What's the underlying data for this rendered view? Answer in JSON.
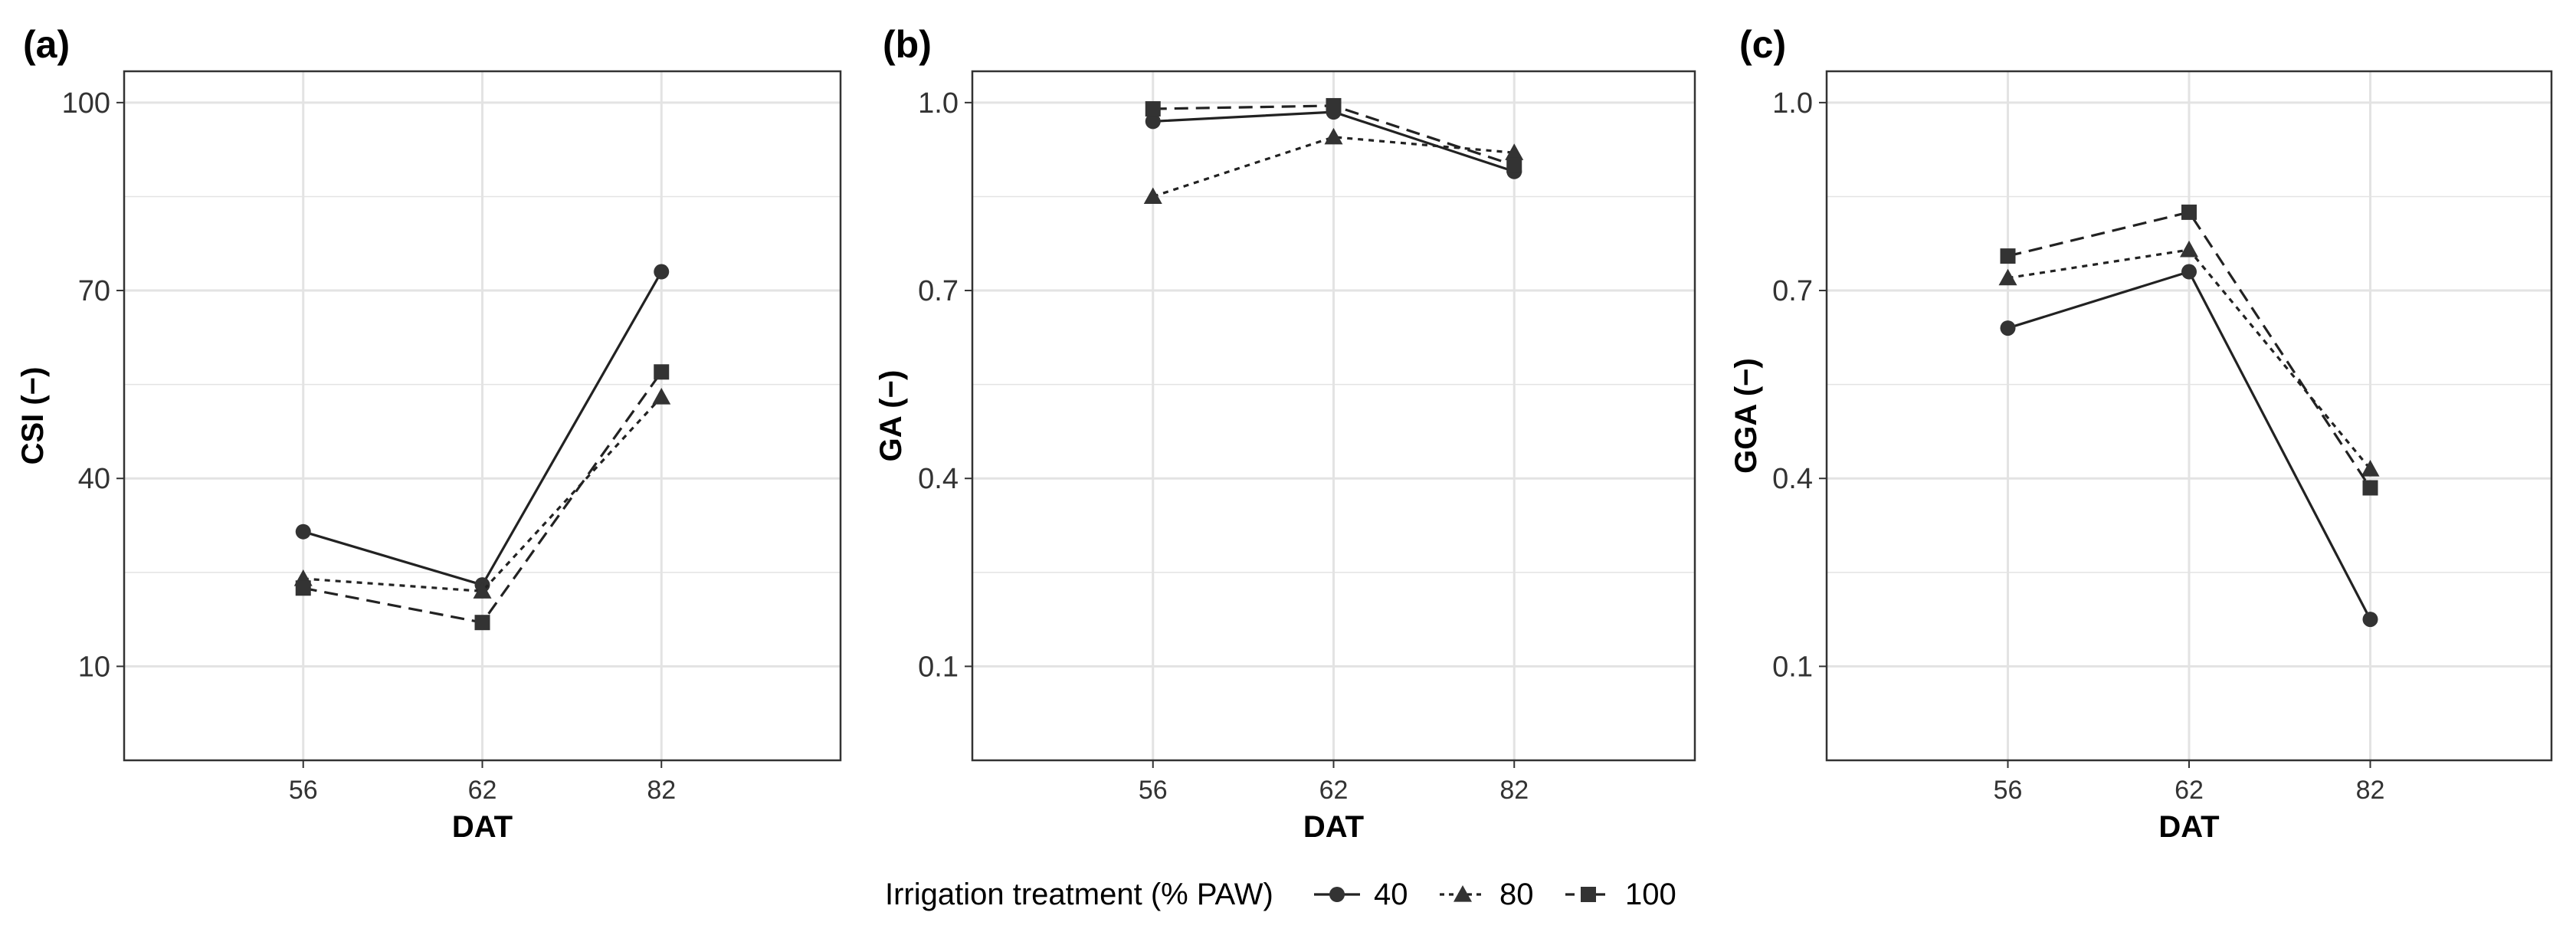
{
  "chart_data": [
    {
      "type": "line",
      "panel_label": "(a)",
      "xlabel": "DAT",
      "ylabel": "CSI (−)",
      "categories": [
        "56",
        "62",
        "82"
      ],
      "yticks": [
        "10",
        "40",
        "70",
        "100"
      ],
      "ylim": [
        -5,
        105
      ],
      "grid": true,
      "series": [
        {
          "name": "40",
          "values": [
            31.5,
            23,
            73
          ]
        },
        {
          "name": "80",
          "values": [
            24,
            22,
            53
          ]
        },
        {
          "name": "100",
          "values": [
            22.5,
            17,
            57
          ]
        }
      ]
    },
    {
      "type": "line",
      "panel_label": "(b)",
      "xlabel": "DAT",
      "ylabel": "GA (−)",
      "categories": [
        "56",
        "62",
        "82"
      ],
      "yticks": [
        "0.1",
        "0.4",
        "0.7",
        "1.0"
      ],
      "ylim": [
        -0.05,
        1.05
      ],
      "grid": true,
      "series": [
        {
          "name": "40",
          "values": [
            0.97,
            0.985,
            0.89
          ]
        },
        {
          "name": "80",
          "values": [
            0.85,
            0.945,
            0.92
          ]
        },
        {
          "name": "100",
          "values": [
            0.99,
            0.995,
            0.9
          ]
        }
      ]
    },
    {
      "type": "line",
      "panel_label": "(c)",
      "xlabel": "DAT",
      "ylabel": "GGA (−)",
      "categories": [
        "56",
        "62",
        "82"
      ],
      "yticks": [
        "0.1",
        "0.4",
        "0.7",
        "1.0"
      ],
      "ylim": [
        -0.05,
        1.05
      ],
      "grid": true,
      "series": [
        {
          "name": "40",
          "values": [
            0.64,
            0.73,
            0.175
          ]
        },
        {
          "name": "80",
          "values": [
            0.72,
            0.765,
            0.415
          ]
        },
        {
          "name": "100",
          "values": [
            0.755,
            0.825,
            0.385
          ]
        }
      ]
    }
  ],
  "legend": {
    "title": "Irrigation treatment (% PAW)",
    "position": "bottom",
    "entries": [
      {
        "name": "40",
        "marker": "circle",
        "line": "solid"
      },
      {
        "name": "80",
        "marker": "triangle",
        "line": "dotted"
      },
      {
        "name": "100",
        "marker": "square",
        "line": "dashed"
      }
    ]
  },
  "colors": {
    "line": "#222222",
    "marker": "#333333",
    "grid": "#e3e3e3",
    "frame": "#333333"
  }
}
